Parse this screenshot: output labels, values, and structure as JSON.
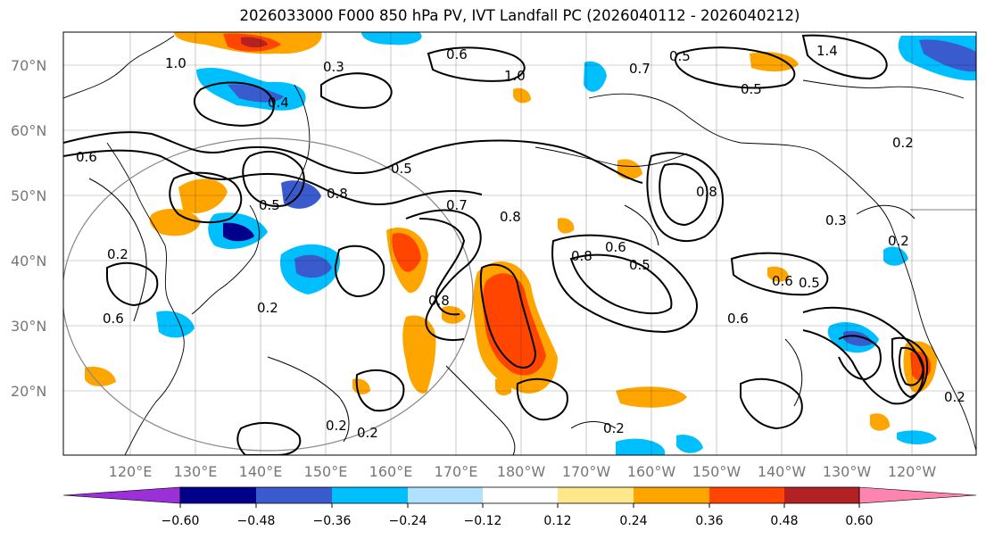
{
  "title": "2026033000 F000 850 hPa PV, IVT Landfall PC (2026040112 - 2026040212)",
  "lat_labels": [
    "70°N",
    "60°N",
    "50°N",
    "40°N",
    "30°N",
    "20°N"
  ],
  "lon_labels": [
    "120°E",
    "130°E",
    "140°E",
    "150°E",
    "160°E",
    "170°E",
    "180°W",
    "170°W",
    "160°W",
    "150°W",
    "140°W",
    "130°W",
    "120°W"
  ],
  "colorbar": {
    "ticks": [
      "−0.60",
      "−0.48",
      "−0.36",
      "−0.24",
      "−0.12",
      "0.12",
      "0.24",
      "0.36",
      "0.48",
      "0.60"
    ],
    "colors": [
      "#9b30d9",
      "#00008b",
      "#3a5bcd",
      "#00bfff",
      "#b0e2ff",
      "#ffffff",
      "#ffe88c",
      "#ffa500",
      "#ff4500",
      "#b22222",
      "#ff85b0"
    ]
  },
  "contour_labels": [
    "0.6",
    "1.0",
    "0.3",
    "1.0",
    "0.7",
    "0.5",
    "1.4",
    "0.5",
    "0.5",
    "0.2",
    "0.8",
    "0.5",
    "0.7",
    "0.6",
    "0.8",
    "0.8",
    "0.6",
    "0.5",
    "0.3",
    "0.2",
    "0.4",
    "0.6",
    "0.2",
    "0.2",
    "0.8",
    "0.6",
    "0.5",
    "0.6",
    "0.2",
    "0.2",
    "0.2",
    "0.8",
    "0.2"
  ]
}
